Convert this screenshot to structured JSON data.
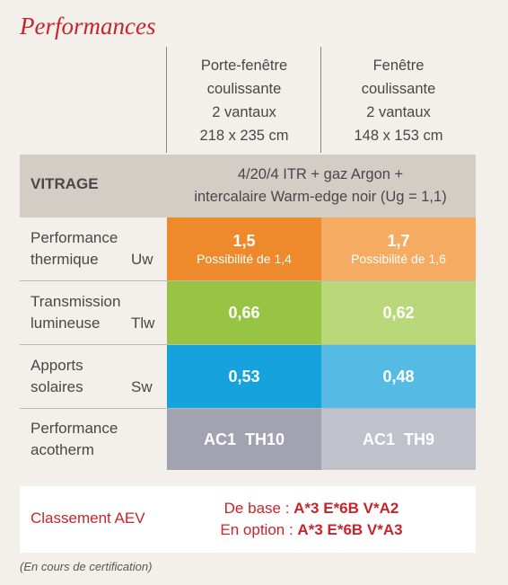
{
  "title": "Performances",
  "columns": [
    {
      "lines": [
        "Porte-fenêtre",
        "coulissante",
        "2 vantaux",
        "218 x 235 cm"
      ]
    },
    {
      "lines": [
        "Fenêtre",
        "coulissante",
        "2 vantaux",
        "148 x 153 cm"
      ]
    }
  ],
  "vitrage": {
    "label": "VITRAGE",
    "line1": "4/20/4 ITR + gaz Argon +",
    "line2": "intercalaire Warm-edge noir (Ug = 1,1)"
  },
  "rows": [
    {
      "label1": "Performance",
      "label2": "thermique",
      "abbr": "Uw",
      "cells": [
        {
          "value": "1,5",
          "note": "Possibilité de 1,4"
        },
        {
          "value": "1,7",
          "note": "Possibilité de 1,6"
        }
      ],
      "colors": [
        "#ef8a2c",
        "#f5ab62"
      ]
    },
    {
      "label1": "Transmission",
      "label2": "lumineuse",
      "abbr": "Tlw",
      "cells": [
        {
          "value": "0,66"
        },
        {
          "value": "0,62"
        }
      ],
      "colors": [
        "#98c443",
        "#b9d87a"
      ]
    },
    {
      "label1": "Apports",
      "label2": "solaires",
      "abbr": "Sw",
      "cells": [
        {
          "value": "0,53"
        },
        {
          "value": "0,48"
        }
      ],
      "colors": [
        "#16a2dc",
        "#55bbe5"
      ]
    },
    {
      "label1": "Performance",
      "label2": "acotherm",
      "abbr": "",
      "cells": [
        {
          "value": "AC1  TH10"
        },
        {
          "value": "AC1  TH9"
        }
      ],
      "colors": [
        "#a1a3b1",
        "#bfc1cb"
      ]
    }
  ],
  "aev": {
    "label": "Classement AEV",
    "base_prefix": "De base : ",
    "base_value": "A*3 E*6B V*A2",
    "option_prefix": "En option : ",
    "option_value": "A*3 E*6B V*A3"
  },
  "footnote": "(En cours de certification)"
}
